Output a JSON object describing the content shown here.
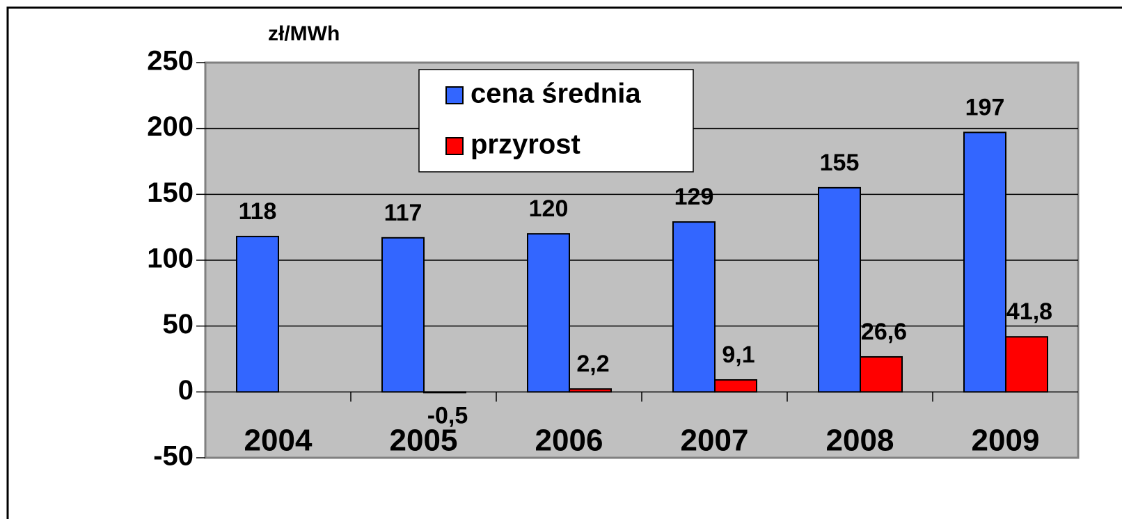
{
  "chart_data": {
    "type": "bar",
    "y_axis_label": "zł/MWh",
    "categories": [
      "2004",
      "2005",
      "2006",
      "2007",
      "2008",
      "2009"
    ],
    "series": [
      {
        "name": "cena średnia",
        "color": "#3366ff",
        "values": [
          118,
          117,
          120,
          129,
          155,
          197
        ]
      },
      {
        "name": "przyrost",
        "color": "#ff0000",
        "values": [
          null,
          -0.5,
          2.2,
          9.1,
          26.6,
          41.8
        ],
        "value_labels": [
          null,
          "-0,5",
          "2,2",
          "9,1",
          "26,6",
          "41,8"
        ]
      }
    ],
    "ylim": [
      -50,
      250
    ],
    "yticks": [
      -50,
      0,
      50,
      100,
      150,
      200,
      250
    ],
    "grid": true,
    "legend": "top"
  }
}
